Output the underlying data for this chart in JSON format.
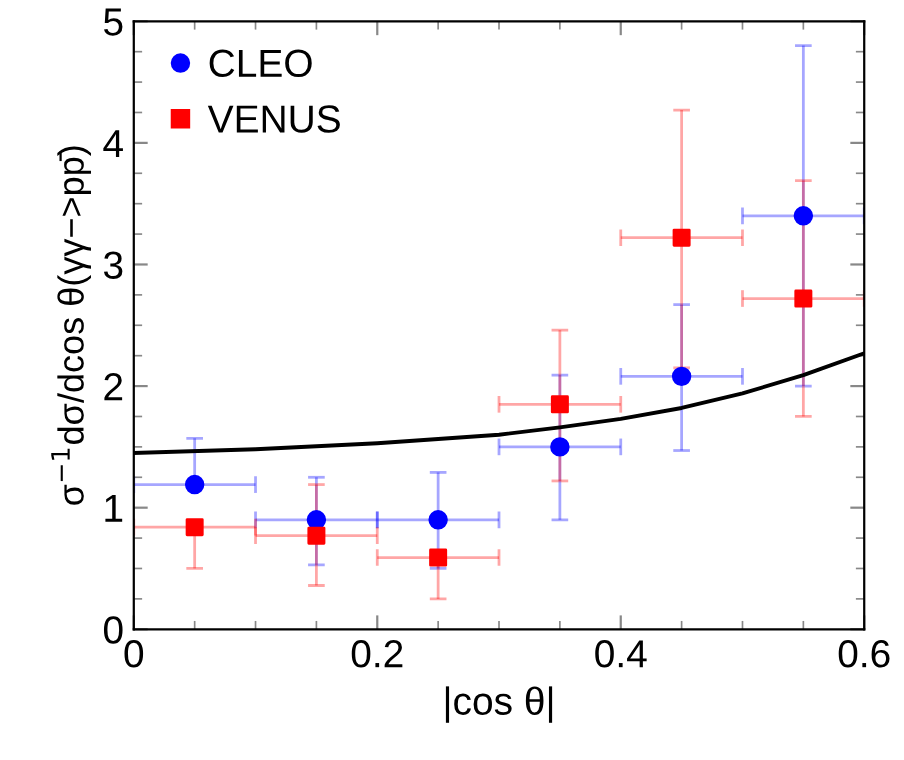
{
  "chart_data": {
    "type": "scatter",
    "xlabel": "|cos θ|",
    "ylabel": "σ$^{−1}$dσ/dcos θ(γγ−>pp̄)",
    "xlim": [
      0,
      0.6
    ],
    "ylim": [
      0,
      5
    ],
    "xticks": [
      0,
      0.2,
      0.4,
      0.6
    ],
    "yticks": [
      0,
      1,
      2,
      3,
      4,
      5
    ],
    "legend": "top left",
    "grid": false,
    "series": [
      {
        "name": "CLEO",
        "color": "#0000ff",
        "marker": "circle",
        "x": [
          0.05,
          0.15,
          0.25,
          0.35,
          0.45,
          0.55
        ],
        "values": [
          1.19,
          0.9,
          0.9,
          1.5,
          2.08,
          3.4
        ],
        "errors": [
          [
            1.19,
            1.57
          ],
          [
            0.53,
            1.25
          ],
          [
            0.5,
            1.29
          ],
          [
            0.9,
            2.09
          ],
          [
            1.47,
            2.67
          ],
          [
            2.0,
            4.8
          ]
        ],
        "xerrors": [
          0.05,
          0.05,
          0.05,
          0.05,
          0.05,
          0.05
        ]
      },
      {
        "name": "VENUS",
        "color": "#ff0000",
        "marker": "square",
        "x": [
          0.05,
          0.15,
          0.25,
          0.35,
          0.45,
          0.55
        ],
        "values": [
          0.84,
          0.77,
          0.59,
          1.85,
          3.22,
          2.72
        ],
        "errors": [
          [
            0.5,
            0.84
          ],
          [
            0.36,
            1.19
          ],
          [
            0.25,
            0.59
          ],
          [
            1.22,
            2.46
          ],
          [
            2.15,
            4.27
          ],
          [
            1.75,
            3.69
          ]
        ],
        "xerrors": [
          0.05,
          0.05,
          0.05,
          0.05,
          0.05,
          0.05
        ]
      },
      {
        "type": "line",
        "color": "#000000",
        "marker": "none",
        "x": [
          0,
          0.1,
          0.2,
          0.3,
          0.35,
          0.4,
          0.45,
          0.5,
          0.55,
          0.6
        ],
        "values": [
          1.45,
          1.48,
          1.53,
          1.6,
          1.66,
          1.73,
          1.82,
          1.94,
          2.09,
          2.27
        ]
      }
    ]
  }
}
